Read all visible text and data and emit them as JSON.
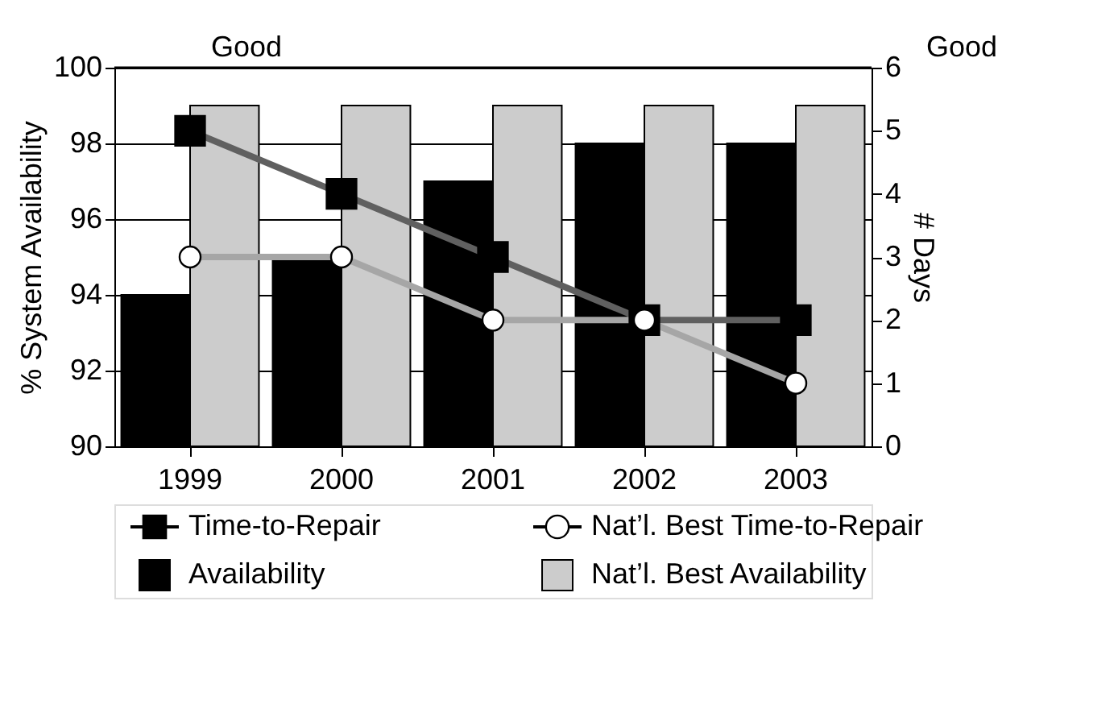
{
  "chart_data": {
    "type": "bar",
    "categories": [
      "1999",
      "2000",
      "2001",
      "2002",
      "2003"
    ],
    "ylabel": "% System Availability",
    "y2label": "# Days",
    "ylim": [
      90,
      100
    ],
    "yticks": [
      90,
      92,
      94,
      96,
      98,
      100
    ],
    "y2lim": [
      0,
      6
    ],
    "y2ticks": [
      0,
      1,
      2,
      3,
      4,
      5,
      6
    ],
    "grid": "y",
    "legend": "bottom",
    "annotations": [
      "Good",
      "Good"
    ],
    "series": [
      {
        "name": "Availability",
        "color": "#000000",
        "values": [
          94,
          95,
          97,
          98,
          98
        ]
      },
      {
        "name": "Nat’l. Best Availability",
        "color": "#cccccc",
        "values": [
          99,
          99,
          99,
          99,
          99
        ]
      },
      {
        "name": "Time-to-Repair",
        "type": "line",
        "axis": "y2",
        "marker": "square",
        "color": "#606060",
        "values": [
          5,
          4,
          3,
          2,
          2
        ]
      },
      {
        "name": "Nat’l. Best Time-to-Repair",
        "type": "line",
        "axis": "y2",
        "marker": "circle",
        "color": "#a6a6a6",
        "values": [
          3,
          3,
          2,
          2,
          1
        ]
      }
    ]
  }
}
